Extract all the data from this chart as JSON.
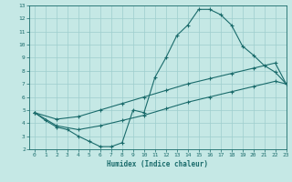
{
  "line1_x": [
    0,
    1,
    2,
    3,
    4,
    5,
    6,
    7,
    8,
    9,
    10,
    11,
    12,
    13,
    14,
    15,
    16,
    17,
    18,
    19,
    20,
    21,
    22,
    23
  ],
  "line1_y": [
    4.8,
    4.2,
    3.7,
    3.5,
    3.0,
    2.6,
    2.2,
    2.2,
    2.5,
    5.0,
    4.8,
    7.5,
    9.0,
    10.7,
    11.5,
    12.7,
    12.7,
    12.3,
    11.5,
    9.9,
    9.2,
    8.4,
    7.9,
    7.0
  ],
  "line2_x": [
    0,
    2,
    4,
    6,
    8,
    10,
    12,
    14,
    16,
    18,
    20,
    22,
    23
  ],
  "line2_y": [
    4.8,
    4.3,
    4.5,
    5.0,
    5.5,
    6.0,
    6.5,
    7.0,
    7.4,
    7.8,
    8.2,
    8.6,
    7.0
  ],
  "line3_x": [
    0,
    2,
    4,
    6,
    8,
    10,
    12,
    14,
    16,
    18,
    20,
    22,
    23
  ],
  "line3_y": [
    4.8,
    3.8,
    3.5,
    3.8,
    4.2,
    4.6,
    5.1,
    5.6,
    6.0,
    6.4,
    6.8,
    7.2,
    7.0
  ],
  "xlim": [
    -0.5,
    23
  ],
  "ylim": [
    2,
    13
  ],
  "yticks": [
    2,
    3,
    4,
    5,
    6,
    7,
    8,
    9,
    10,
    11,
    12,
    13
  ],
  "xticks": [
    0,
    1,
    2,
    3,
    4,
    5,
    6,
    7,
    8,
    9,
    10,
    11,
    12,
    13,
    14,
    15,
    16,
    17,
    18,
    19,
    20,
    21,
    22,
    23
  ],
  "xlabel": "Humidex (Indice chaleur)",
  "bg_color": "#c5e8e5",
  "line_color": "#1a6b6b",
  "grid_color": "#9ecece"
}
